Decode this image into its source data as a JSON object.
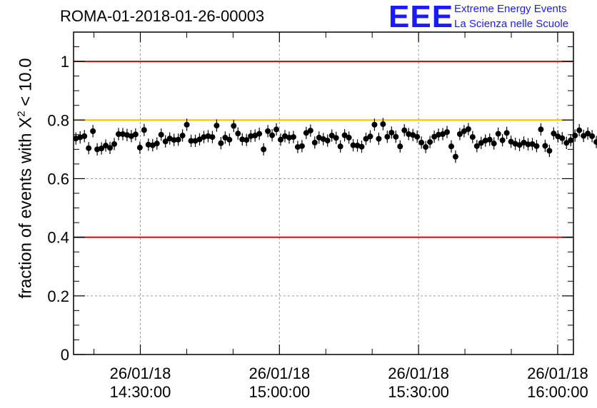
{
  "header": {
    "title": "ROMA-01-2018-01-26-00003"
  },
  "logo": {
    "mark": "EEE",
    "line1": "Extreme Energy Events",
    "line2": "La Scienza nelle Scuole",
    "color": "#1a1aff"
  },
  "chart_data": {
    "type": "scatter",
    "ylabel": {
      "prefix": "fraction of events with X",
      "sup": "2",
      "suffix": " < 10.0"
    },
    "xlabel": "",
    "ylim": [
      0,
      1.1
    ],
    "xlim_minutes": [
      -14.4,
      93.4
    ],
    "grid": true,
    "x_ticks": [
      {
        "minute": 0,
        "date": "26/01/18",
        "time": "14:30:00"
      },
      {
        "minute": 30,
        "date": "26/01/18",
        "time": "15:00:00"
      },
      {
        "minute": 60,
        "date": "26/01/18",
        "time": "15:30:00"
      },
      {
        "minute": 90,
        "date": "26/01/18",
        "time": "16:00:00"
      }
    ],
    "x_minor_minutes": [
      -10,
      10,
      20,
      40,
      50,
      70,
      80
    ],
    "y_ticks": [
      {
        "value": 0,
        "label": "0"
      },
      {
        "value": 0.2,
        "label": "0.2"
      },
      {
        "value": 0.4,
        "label": "0.4"
      },
      {
        "value": 0.6,
        "label": "0.6"
      },
      {
        "value": 0.8,
        "label": "0.8"
      },
      {
        "value": 1,
        "label": "1"
      }
    ],
    "reference_lines": [
      {
        "y": 1.0,
        "color": "#e00000"
      },
      {
        "y": 0.8,
        "color": "#ffbf00"
      },
      {
        "y": 0.4,
        "color": "#e00000"
      }
    ],
    "series": [
      {
        "marker_color": "#000000",
        "error": 0.021,
        "x_start_minute": -13.9,
        "x_step_minute": 0.92,
        "values": [
          0.737,
          0.741,
          0.745,
          0.704,
          0.762,
          0.7,
          0.703,
          0.713,
          0.705,
          0.718,
          0.752,
          0.752,
          0.749,
          0.745,
          0.751,
          0.706,
          0.766,
          0.716,
          0.714,
          0.72,
          0.75,
          0.727,
          0.737,
          0.732,
          0.733,
          0.747,
          0.784,
          0.729,
          0.729,
          0.734,
          0.742,
          0.745,
          0.742,
          0.781,
          0.721,
          0.74,
          0.733,
          0.78,
          0.754,
          0.734,
          0.732,
          0.745,
          0.747,
          0.753,
          0.7,
          0.762,
          0.748,
          0.768,
          0.733,
          0.745,
          0.74,
          0.742,
          0.708,
          0.711,
          0.756,
          0.764,
          0.723,
          0.74,
          0.735,
          0.73,
          0.747,
          0.739,
          0.71,
          0.748,
          0.74,
          0.714,
          0.713,
          0.709,
          0.736,
          0.744,
          0.784,
          0.736,
          0.786,
          0.743,
          0.757,
          0.743,
          0.71,
          0.765,
          0.752,
          0.749,
          0.743,
          0.723,
          0.708,
          0.725,
          0.743,
          0.75,
          0.752,
          0.759,
          0.71,
          0.675,
          0.752,
          0.762,
          0.769,
          0.742,
          0.711,
          0.722,
          0.73,
          0.733,
          0.72,
          0.753,
          0.731,
          0.756,
          0.726,
          0.719,
          0.715,
          0.723,
          0.717,
          0.718,
          0.711,
          0.768,
          0.712,
          0.695,
          0.754,
          0.744,
          0.738,
          0.722,
          0.731,
          0.747,
          0.765,
          0.746,
          0.754,
          0.745,
          0.725
        ]
      }
    ]
  }
}
